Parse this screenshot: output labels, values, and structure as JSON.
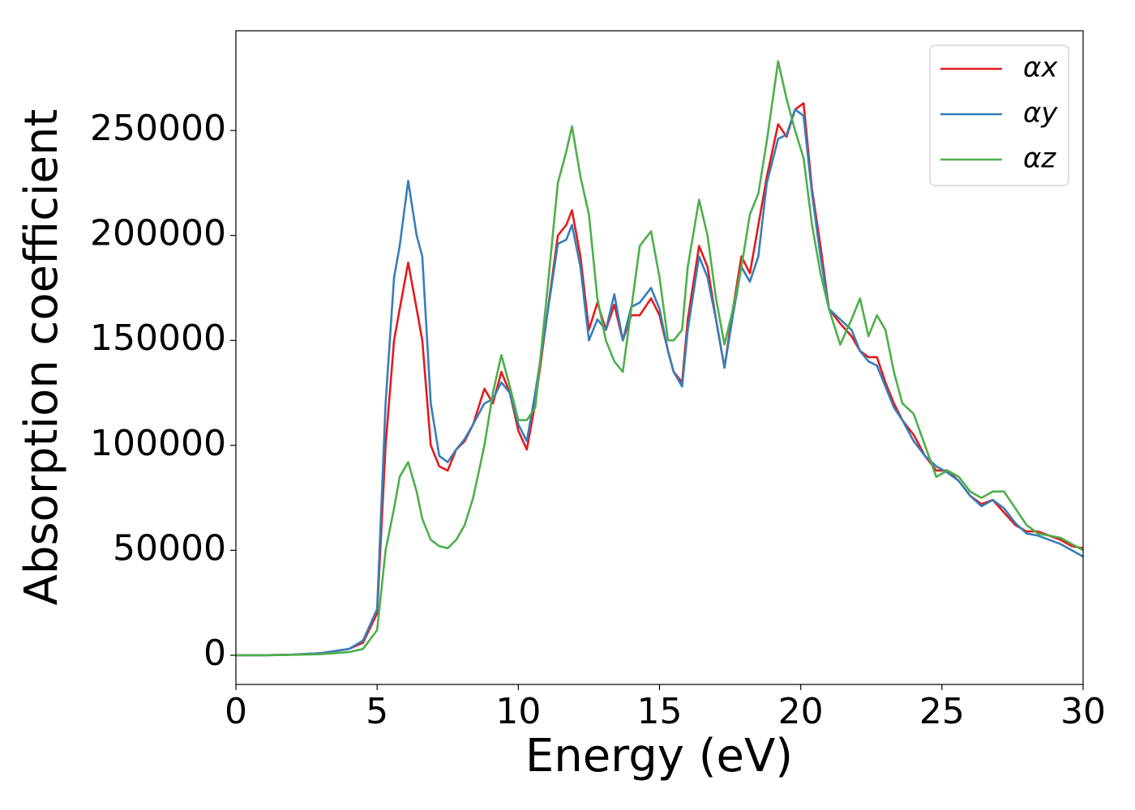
{
  "chart_data": {
    "type": "line",
    "xlabel": "Energy (eV)",
    "ylabel": "Absorption coefficient",
    "xlim": [
      0,
      30
    ],
    "xticks": [
      0,
      5,
      10,
      15,
      20,
      25,
      30
    ],
    "ylim": [
      -13900,
      297500
    ],
    "yticks": [
      0,
      50000,
      100000,
      150000,
      200000,
      250000
    ],
    "legend": "upper right",
    "x": [
      0,
      1,
      2,
      3,
      4,
      4.5,
      5,
      5.3,
      5.6,
      5.8,
      6.1,
      6.4,
      6.6,
      6.9,
      7.2,
      7.5,
      7.8,
      8.1,
      8.4,
      8.8,
      9.1,
      9.4,
      9.7,
      10,
      10.3,
      10.6,
      11,
      11.4,
      11.7,
      11.9,
      12.2,
      12.5,
      12.8,
      13.1,
      13.4,
      13.7,
      14,
      14.3,
      14.7,
      15,
      15.3,
      15.5,
      15.8,
      16,
      16.4,
      16.7,
      17,
      17.3,
      17.6,
      17.9,
      18.2,
      18.5,
      18.8,
      19.2,
      19.5,
      19.8,
      20.1,
      20.4,
      20.7,
      21,
      21.4,
      21.8,
      22.1,
      22.4,
      22.7,
      23,
      23.3,
      23.6,
      24,
      24.4,
      24.8,
      25.2,
      25.6,
      26,
      26.4,
      26.8,
      27.2,
      27.6,
      28,
      28.4,
      28.8,
      29.2,
      29.6,
      30
    ],
    "series": [
      {
        "name": "αx",
        "color": "#e41a1c",
        "values": [
          0,
          0,
          300,
          1000,
          3000,
          6000,
          20000,
          100000,
          150000,
          165000,
          187000,
          165000,
          150000,
          100000,
          90000,
          88000,
          98000,
          102000,
          110000,
          127000,
          120000,
          135000,
          125000,
          107000,
          98000,
          120000,
          160000,
          200000,
          205000,
          212000,
          190000,
          155000,
          168000,
          155000,
          167000,
          150000,
          162000,
          162000,
          170000,
          162000,
          145000,
          135000,
          130000,
          160000,
          195000,
          185000,
          160000,
          137000,
          165000,
          190000,
          182000,
          205000,
          228000,
          253000,
          247000,
          260000,
          263000,
          222000,
          195000,
          165000,
          158000,
          152000,
          145000,
          142000,
          142000,
          130000,
          120000,
          112000,
          105000,
          95000,
          88000,
          88000,
          83000,
          76000,
          72000,
          74000,
          68000,
          62000,
          59000,
          59000,
          57000,
          55000,
          52000,
          51000
        ]
      },
      {
        "name": "αy",
        "color": "#377eb8",
        "values": [
          0,
          0,
          300,
          1000,
          3000,
          7000,
          22000,
          120000,
          180000,
          195000,
          226000,
          200000,
          190000,
          120000,
          95000,
          92000,
          98000,
          103000,
          110000,
          120000,
          122000,
          130000,
          125000,
          110000,
          102000,
          125000,
          160000,
          196000,
          198000,
          205000,
          185000,
          150000,
          160000,
          155000,
          172000,
          150000,
          166000,
          168000,
          175000,
          165000,
          145000,
          135000,
          128000,
          155000,
          190000,
          180000,
          160000,
          137000,
          162000,
          185000,
          178000,
          190000,
          225000,
          246000,
          248000,
          260000,
          257000,
          220000,
          190000,
          165000,
          160000,
          155000,
          145000,
          140000,
          138000,
          128000,
          118000,
          112000,
          102000,
          95000,
          90000,
          87000,
          83000,
          76000,
          71000,
          74000,
          70000,
          63000,
          58000,
          57000,
          55000,
          53000,
          50000,
          47000
        ]
      },
      {
        "name": "αz",
        "color": "#4daf4a",
        "values": [
          0,
          0,
          200,
          500,
          1500,
          3000,
          12000,
          50000,
          70000,
          85000,
          92000,
          78000,
          65000,
          55000,
          52000,
          51000,
          55000,
          62000,
          75000,
          100000,
          125000,
          143000,
          128000,
          112000,
          112000,
          118000,
          170000,
          225000,
          240000,
          252000,
          228000,
          210000,
          170000,
          150000,
          140000,
          135000,
          165000,
          195000,
          202000,
          180000,
          150000,
          150000,
          155000,
          185000,
          217000,
          200000,
          170000,
          148000,
          165000,
          185000,
          210000,
          220000,
          245000,
          283000,
          265000,
          250000,
          237000,
          205000,
          182000,
          165000,
          148000,
          160000,
          170000,
          152000,
          162000,
          155000,
          135000,
          120000,
          115000,
          100000,
          85000,
          88000,
          85000,
          78000,
          75000,
          78000,
          78000,
          70000,
          62000,
          58000,
          57000,
          56000,
          53000,
          50000
        ]
      }
    ]
  }
}
